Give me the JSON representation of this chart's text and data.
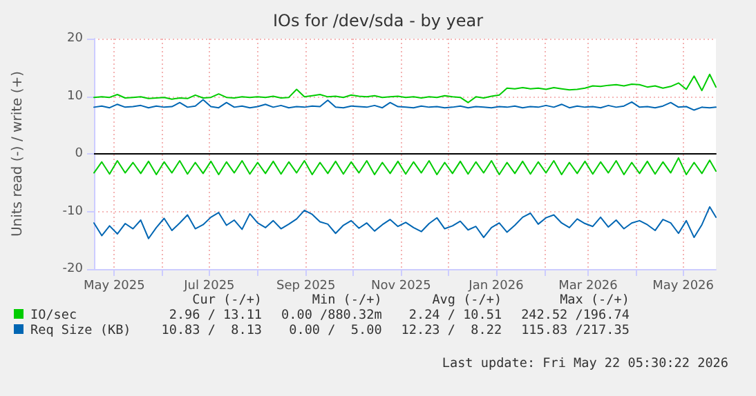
{
  "chart_data": {
    "type": "line",
    "title": "IOs for /dev/sda - by year",
    "ylabel": "Units read (-) / write (+)",
    "x": [
      "2025-04-18",
      "2025-04-23",
      "2025-04-28",
      "2025-05-03",
      "2025-05-08",
      "2025-05-13",
      "2025-05-18",
      "2025-05-23",
      "2025-05-28",
      "2025-06-02",
      "2025-06-07",
      "2025-06-12",
      "2025-06-17",
      "2025-06-22",
      "2025-06-27",
      "2025-07-02",
      "2025-07-07",
      "2025-07-12",
      "2025-07-17",
      "2025-07-22",
      "2025-07-27",
      "2025-08-01",
      "2025-08-06",
      "2025-08-11",
      "2025-08-16",
      "2025-08-21",
      "2025-08-26",
      "2025-08-31",
      "2025-09-05",
      "2025-09-10",
      "2025-09-15",
      "2025-09-20",
      "2025-09-25",
      "2025-09-30",
      "2025-10-05",
      "2025-10-10",
      "2025-10-15",
      "2025-10-20",
      "2025-10-25",
      "2025-10-30",
      "2025-11-04",
      "2025-11-09",
      "2025-11-14",
      "2025-11-19",
      "2025-11-24",
      "2025-11-29",
      "2025-12-04",
      "2025-12-09",
      "2025-12-14",
      "2025-12-19",
      "2025-12-24",
      "2025-12-29",
      "2026-01-03",
      "2026-01-08",
      "2026-01-13",
      "2026-01-18",
      "2026-01-23",
      "2026-01-28",
      "2026-02-02",
      "2026-02-07",
      "2026-02-12",
      "2026-02-17",
      "2026-02-22",
      "2026-02-27",
      "2026-03-04",
      "2026-03-09",
      "2026-03-14",
      "2026-03-19",
      "2026-03-24",
      "2026-03-29",
      "2026-04-03",
      "2026-04-08",
      "2026-04-13",
      "2026-04-18",
      "2026-04-23",
      "2026-04-28",
      "2026-05-03",
      "2026-05-08",
      "2026-05-13",
      "2026-05-18",
      "2026-05-22"
    ],
    "series": [
      {
        "name": "IO/sec",
        "color": "#00cc00",
        "values": [
          9.8,
          9.9,
          9.8,
          10.3,
          9.7,
          9.8,
          9.9,
          9.6,
          9.7,
          9.8,
          9.5,
          9.7,
          9.6,
          10.2,
          9.7,
          9.8,
          10.4,
          9.8,
          9.7,
          9.9,
          9.8,
          9.9,
          9.8,
          10.0,
          9.7,
          9.8,
          11.2,
          9.9,
          10.1,
          10.3,
          9.9,
          10.0,
          9.8,
          10.2,
          10.0,
          9.9,
          10.1,
          9.8,
          9.9,
          10.0,
          9.8,
          9.9,
          9.7,
          9.9,
          9.8,
          10.1,
          9.9,
          9.8,
          8.9,
          9.9,
          9.7,
          10.0,
          10.2,
          11.4,
          11.3,
          11.5,
          11.3,
          11.4,
          11.2,
          11.5,
          11.3,
          11.1,
          11.2,
          11.4,
          11.8,
          11.7,
          11.9,
          12.0,
          11.8,
          12.1,
          12.0,
          11.6,
          11.8,
          11.4,
          11.7,
          12.3,
          11.2,
          13.5,
          11.0,
          13.8,
          11.6
        ]
      },
      {
        "color": "#00cc00",
        "values": [
          -3.3,
          -1.4,
          -3.5,
          -1.2,
          -3.3,
          -1.5,
          -3.4,
          -1.3,
          -3.6,
          -1.4,
          -3.3,
          -1.2,
          -3.5,
          -1.5,
          -3.4,
          -1.3,
          -3.6,
          -1.4,
          -3.3,
          -1.2,
          -3.5,
          -1.5,
          -3.4,
          -1.3,
          -3.5,
          -1.4,
          -3.3,
          -1.2,
          -3.6,
          -1.5,
          -3.4,
          -1.3,
          -3.5,
          -1.4,
          -3.3,
          -1.2,
          -3.6,
          -1.5,
          -3.4,
          -1.3,
          -3.5,
          -1.4,
          -3.3,
          -1.2,
          -3.6,
          -1.5,
          -3.4,
          -1.3,
          -3.5,
          -1.4,
          -3.3,
          -1.2,
          -3.6,
          -1.5,
          -3.4,
          -1.3,
          -3.5,
          -1.4,
          -3.3,
          -1.2,
          -3.6,
          -1.5,
          -3.4,
          -1.3,
          -3.5,
          -1.4,
          -3.3,
          -1.2,
          -3.6,
          -1.5,
          -3.4,
          -1.3,
          -3.5,
          -1.4,
          -3.3,
          -0.7,
          -3.6,
          -1.5,
          -3.4,
          -1.1,
          -3.0
        ]
      },
      {
        "name": "Req Size (KB)",
        "color": "#0066b3",
        "values": [
          8.1,
          8.3,
          8.0,
          8.6,
          8.1,
          8.2,
          8.4,
          8.0,
          8.3,
          8.1,
          8.2,
          8.9,
          8.1,
          8.3,
          9.4,
          8.2,
          8.0,
          8.9,
          8.1,
          8.3,
          8.0,
          8.2,
          8.6,
          8.1,
          8.4,
          8.0,
          8.2,
          8.1,
          8.3,
          8.2,
          9.3,
          8.1,
          8.0,
          8.3,
          8.2,
          8.1,
          8.4,
          8.0,
          8.9,
          8.2,
          8.1,
          8.0,
          8.3,
          8.1,
          8.2,
          8.0,
          8.1,
          8.3,
          8.0,
          8.2,
          8.1,
          8.0,
          8.2,
          8.1,
          8.3,
          8.0,
          8.2,
          8.1,
          8.4,
          8.1,
          8.6,
          8.0,
          8.3,
          8.1,
          8.2,
          8.0,
          8.4,
          8.1,
          8.3,
          9.0,
          8.1,
          8.2,
          8.0,
          8.3,
          8.9,
          8.1,
          8.2,
          7.6,
          8.1,
          8.0,
          8.1
        ]
      },
      {
        "color": "#0066b3",
        "values": [
          -12.0,
          -14.2,
          -12.5,
          -13.9,
          -12.1,
          -13.0,
          -11.5,
          -14.7,
          -12.8,
          -11.2,
          -13.3,
          -12.0,
          -10.6,
          -13.0,
          -12.3,
          -11.0,
          -10.2,
          -12.4,
          -11.5,
          -13.1,
          -10.4,
          -12.0,
          -12.8,
          -11.6,
          -13.0,
          -12.2,
          -11.3,
          -9.8,
          -10.5,
          -11.8,
          -12.2,
          -13.8,
          -12.4,
          -11.6,
          -12.9,
          -12.0,
          -13.4,
          -12.3,
          -11.4,
          -12.6,
          -11.9,
          -12.8,
          -13.5,
          -12.1,
          -11.1,
          -13.0,
          -12.5,
          -11.7,
          -13.2,
          -12.6,
          -14.5,
          -12.8,
          -12.0,
          -13.6,
          -12.4,
          -11.0,
          -10.3,
          -12.2,
          -11.1,
          -10.6,
          -12.0,
          -12.8,
          -11.3,
          -12.1,
          -12.6,
          -11.0,
          -12.7,
          -11.5,
          -13.0,
          -12.0,
          -11.6,
          -12.3,
          -13.3,
          -11.4,
          -12.0,
          -13.8,
          -11.6,
          -14.5,
          -12.3,
          -9.2,
          -11.0
        ]
      }
    ],
    "xlim": [
      "2025-04-18",
      "2026-05-22"
    ],
    "xticks": [
      {
        "value": "2025-05-01",
        "label": "May 2025"
      },
      {
        "value": "2025-06-01",
        "label": null
      },
      {
        "value": "2025-07-01",
        "label": "Jul 2025"
      },
      {
        "value": "2025-08-01",
        "label": null
      },
      {
        "value": "2025-09-01",
        "label": "Sep 2025"
      },
      {
        "value": "2025-10-01",
        "label": null
      },
      {
        "value": "2025-11-01",
        "label": "Nov 2025"
      },
      {
        "value": "2025-12-01",
        "label": null
      },
      {
        "value": "2026-01-01",
        "label": "Jan 2026"
      },
      {
        "value": "2026-02-01",
        "label": null
      },
      {
        "value": "2026-03-01",
        "label": "Mar 2026"
      },
      {
        "value": "2026-04-01",
        "label": null
      },
      {
        "value": "2026-05-01",
        "label": "May 2026"
      }
    ],
    "ylim": [
      -20,
      20
    ],
    "yticks": [
      -20,
      -10,
      0,
      10,
      20
    ],
    "grid": true,
    "legend": "bottom",
    "marker": "none",
    "line_style": "solid",
    "annotations": [
      "Cur (-/+)",
      "Min (-/+)",
      "Avg (-/+)",
      "Max (-/+)",
      "2.96 / 13.11",
      "0.00 /880.32m",
      "2.24 / 10.51",
      "242.52 /196.74",
      "10.83 /  8.13",
      "0.00 /  5.00",
      "12.23 /  8.22",
      "115.83 /217.35",
      "Last update: Fri May 22 05:30:22 2026"
    ]
  }
}
